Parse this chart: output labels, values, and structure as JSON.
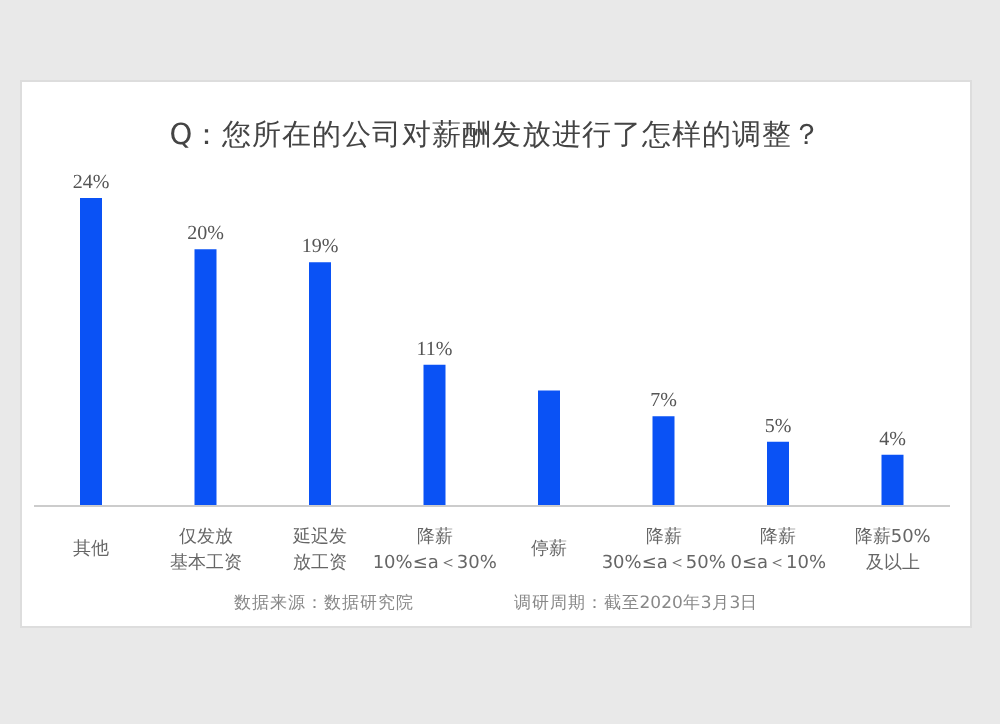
{
  "chart_data": {
    "type": "bar",
    "title": "Q：您所在的公司对薪酬发放进行了怎样的调整？",
    "categories": [
      "其他",
      "仅发放基本工资",
      "延迟发放工资",
      "降薪\n10%≤a＜30%",
      "停薪",
      "降薪\n30%≤a＜50%",
      "降薪\n0≤a＜10%",
      "降薪50%\n及以上"
    ],
    "values": [
      24,
      20,
      19,
      11,
      9,
      7,
      5,
      4
    ],
    "value_labels": [
      "24%",
      "20%",
      "19%",
      "11%",
      null,
      "7%",
      "5%",
      "4%"
    ],
    "color": "#0a52f5",
    "annotations": [
      "数据来源：数据研究院",
      "调研周期：截至2020年3月3日"
    ],
    "grid": false,
    "legend": false
  }
}
